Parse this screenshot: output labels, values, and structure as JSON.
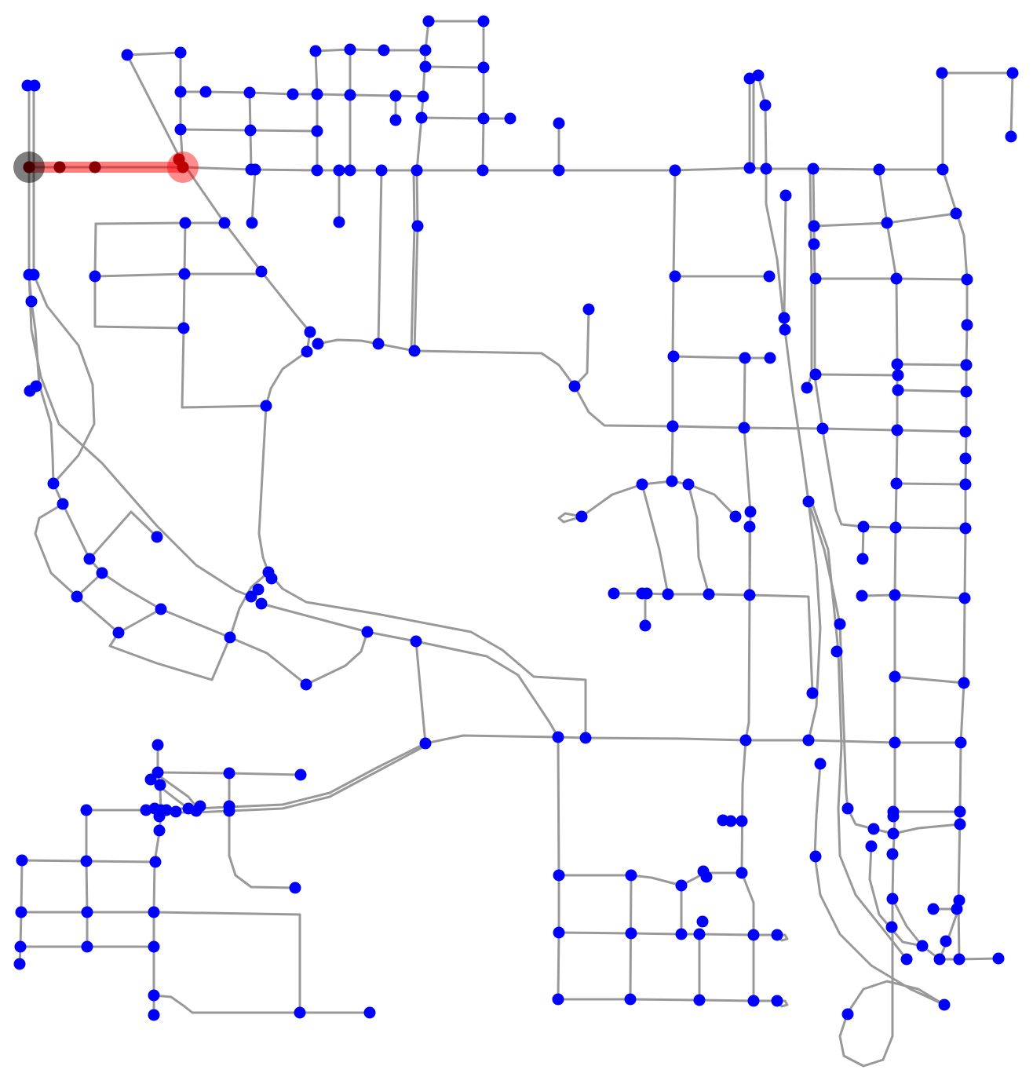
{
  "map": {
    "colors": {
      "background": "#ffffff",
      "road": "#999999",
      "node": "#0000ff",
      "route": "#ff0000",
      "route_start": "#000000",
      "route_end": "#ff0000",
      "route_node": "#8b0000"
    },
    "route_node_count": 5,
    "marker_roles": [
      "route-start",
      "route-end"
    ]
  }
}
